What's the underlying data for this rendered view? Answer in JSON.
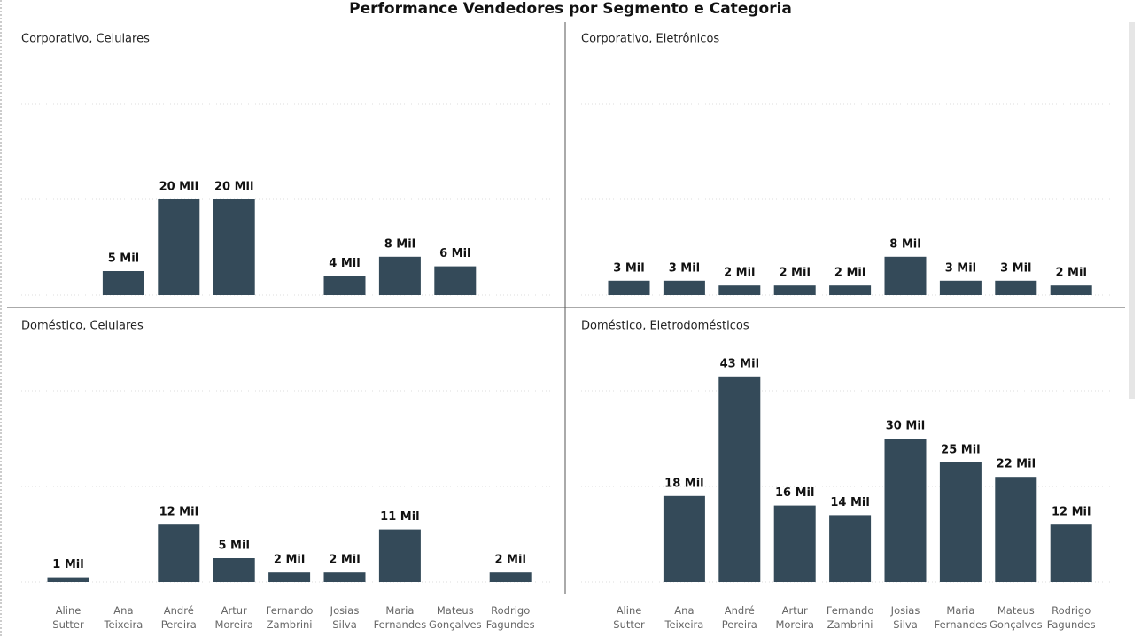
{
  "title": "Performance Vendedores por Segmento e Categoria",
  "chart_data": [
    {
      "type": "bar",
      "title": "Corporativo, Celulares",
      "color": "#344a59",
      "values": [
        null,
        5,
        20,
        20,
        null,
        4,
        8,
        6,
        null
      ],
      "value_labels": [
        null,
        "5 Mil",
        "20 Mil",
        "20 Mil",
        null,
        "4 Mil",
        "8 Mil",
        "6 Mil",
        null
      ],
      "ylim": [
        0,
        45
      ],
      "yticks": [
        0,
        20,
        40
      ],
      "grid": true
    },
    {
      "type": "bar",
      "title": "Corporativo, Eletrônicos",
      "color": "#344a59",
      "values": [
        3,
        3,
        2,
        2,
        2,
        8,
        3,
        3,
        2
      ],
      "value_labels": [
        "3 Mil",
        "3 Mil",
        "2 Mil",
        "2 Mil",
        "2 Mil",
        "8 Mil",
        "3 Mil",
        "3 Mil",
        "2 Mil"
      ],
      "ylim": [
        0,
        45
      ],
      "yticks": [
        0,
        20,
        40
      ],
      "grid": true
    },
    {
      "type": "bar",
      "title": "Doméstico, Celulares",
      "color": "#344a59",
      "categories": [
        "Aline Sutter",
        "Ana Teixeira",
        "André Pereira",
        "Artur Moreira",
        "Fernando Zambrini",
        "Josias Silva",
        "Maria Fernandes",
        "Mateus Gonçalves",
        "Rodrigo Fagundes"
      ],
      "values": [
        1,
        null,
        12,
        5,
        2,
        2,
        11,
        null,
        2
      ],
      "value_labels": [
        "1 Mil",
        null,
        "12 Mil",
        "5 Mil",
        "2 Mil",
        "2 Mil",
        "11 Mil",
        null,
        "2 Mil"
      ],
      "ylim": [
        0,
        45
      ],
      "yticks": [
        0,
        20,
        40
      ],
      "grid": true
    },
    {
      "type": "bar",
      "title": "Doméstico, Eletrodomésticos",
      "color": "#344a59",
      "categories": [
        "Aline Sutter",
        "Ana Teixeira",
        "André Pereira",
        "Artur Moreira",
        "Fernando Zambrini",
        "Josias Silva",
        "Maria Fernandes",
        "Mateus Gonçalves",
        "Rodrigo Fagundes"
      ],
      "values": [
        null,
        18,
        43,
        16,
        14,
        30,
        25,
        22,
        12
      ],
      "value_labels": [
        null,
        "18 Mil",
        "43 Mil",
        "16 Mil",
        "14 Mil",
        "30 Mil",
        "25 Mil",
        "22 Mil",
        "12 Mil"
      ],
      "ylim": [
        0,
        45
      ],
      "yticks": [
        0,
        20,
        40
      ],
      "grid": true
    }
  ]
}
